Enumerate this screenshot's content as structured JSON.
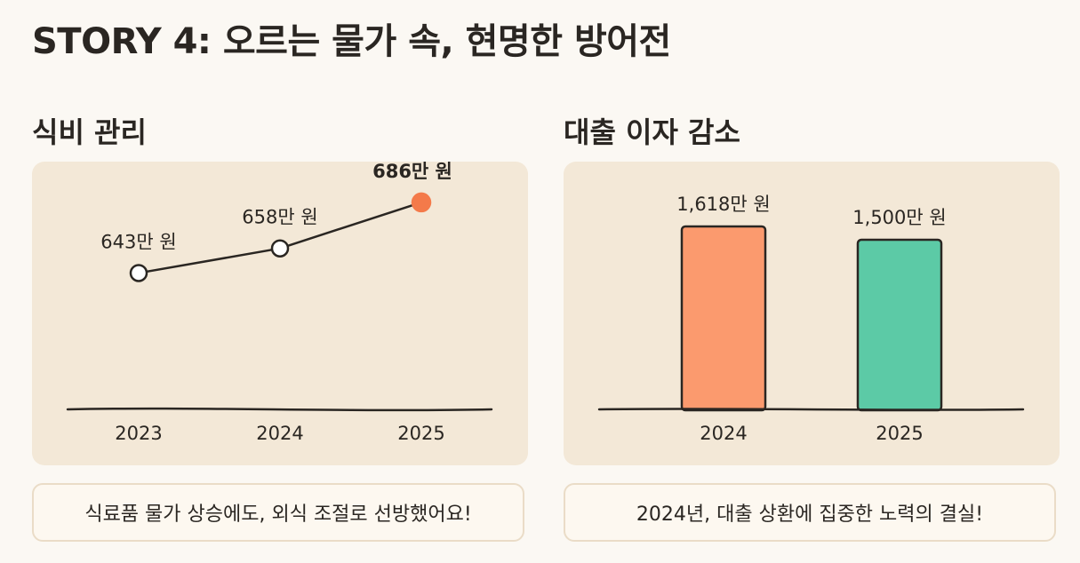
{
  "title": "STORY 4: 오르는 물가 속, 현명한 방어전",
  "colors": {
    "background": "#fbf8f3",
    "panel": "#f3e8d7",
    "ink": "#2a2622",
    "highlight": "#f47a4a",
    "bar_2024": "#fb9a6e",
    "bar_2025": "#5ccaa6"
  },
  "chart_data": [
    {
      "type": "line",
      "title": "식비 관리",
      "caption": "식료품 물가 상승에도, 외식 조절로 선방했어요!",
      "x": [
        "2023",
        "2024",
        "2025"
      ],
      "values": [
        643,
        658,
        686
      ],
      "value_labels": [
        "643만 원",
        "658만 원",
        "686만 원"
      ],
      "highlight_index": 2,
      "ylim": [
        560,
        700
      ]
    },
    {
      "type": "bar",
      "title": "대출 이자 감소",
      "caption": "2024년, 대출 상환에 집중한 노력의 결실!",
      "categories": [
        "2024",
        "2025"
      ],
      "values": [
        1618,
        1500
      ],
      "value_labels": [
        "1,618만 원",
        "1,500만 원"
      ],
      "ylim": [
        0,
        1618
      ]
    }
  ]
}
